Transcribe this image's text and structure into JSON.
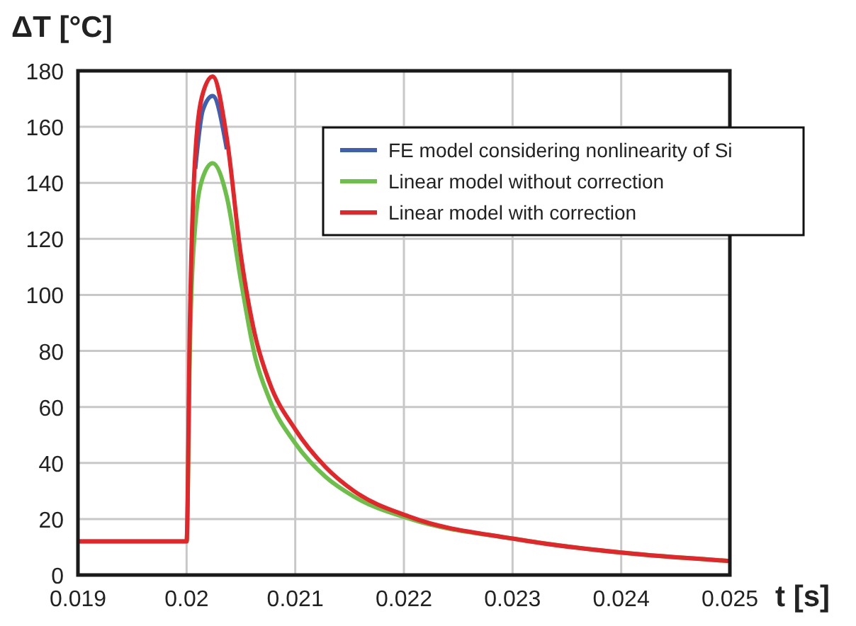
{
  "chart_data": {
    "type": "line",
    "ylabel": "ΔT [°C]",
    "xlabel": "t [s]",
    "xlim": [
      0.019,
      0.025
    ],
    "xticks": [
      0.019,
      0.02,
      0.021,
      0.022,
      0.023,
      0.024,
      0.025
    ],
    "ylim": [
      0,
      180
    ],
    "yticks": [
      0,
      20,
      40,
      60,
      80,
      100,
      120,
      140,
      160,
      180
    ],
    "grid": true,
    "legend": "top right",
    "marker": "none",
    "line_style": "solid",
    "x": [
      0.019,
      0.02,
      0.02003,
      0.02008,
      0.02015,
      0.02024,
      0.02037,
      0.0205,
      0.02063,
      0.02076,
      0.021,
      0.02128,
      0.02154,
      0.02206,
      0.023,
      0.024,
      0.025
    ],
    "series": [
      {
        "name": "FE model considering nonlinearity of Si",
        "color": "#3f5fb0",
        "values": [
          null,
          null,
          null,
          145,
          166,
          171,
          152,
          null,
          null,
          null,
          null,
          null,
          null,
          null,
          null,
          null,
          null
        ]
      },
      {
        "name": "Linear model without correction",
        "color": "#6cc04a",
        "values": [
          12,
          12,
          80,
          125,
          142,
          147,
          135,
          105,
          78,
          63,
          47,
          35,
          28,
          20,
          13,
          8,
          5
        ]
      },
      {
        "name": "Linear model with correction",
        "color": "#e2262a",
        "values": [
          12,
          12,
          90,
          150,
          172,
          178,
          156,
          114,
          85.6,
          69,
          52,
          38.5,
          30,
          20.7,
          13,
          8,
          5
        ]
      }
    ]
  }
}
